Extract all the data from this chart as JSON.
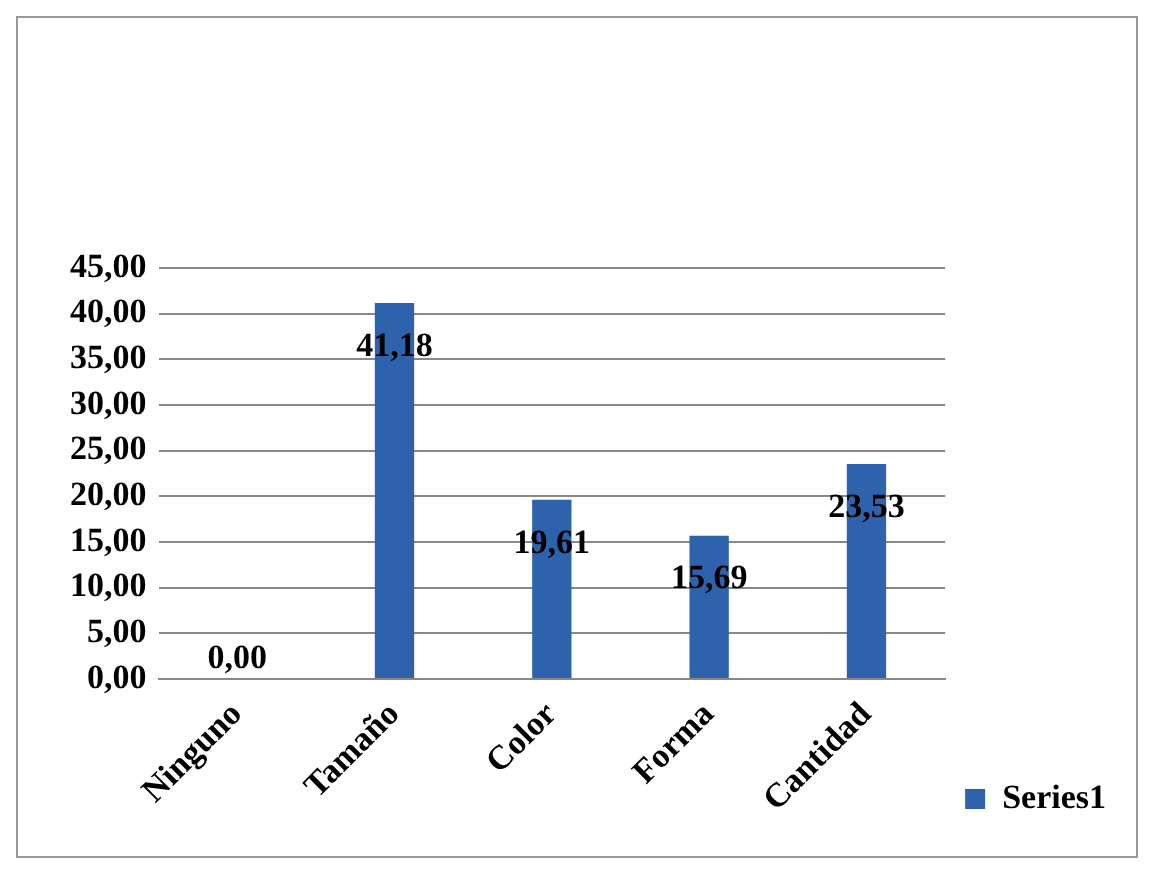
{
  "chart_data": {
    "type": "bar",
    "categories": [
      "Ninguno",
      "Tamaño",
      "Color",
      "Forma",
      "Cantidad"
    ],
    "series": [
      {
        "name": "Series1",
        "color": "#2e62ac",
        "values": [
          0,
          41.18,
          19.61,
          15.69,
          23.53
        ],
        "value_labels": [
          "0,00",
          "41,18",
          "19,61",
          "15,69",
          "23,53"
        ]
      }
    ],
    "ylim": [
      0,
      45
    ],
    "yticks": [
      {
        "value": 0,
        "label": "0,00"
      },
      {
        "value": 5,
        "label": "5,00"
      },
      {
        "value": 10,
        "label": "10,00"
      },
      {
        "value": 15,
        "label": "15,00"
      },
      {
        "value": 20,
        "label": "20,00"
      },
      {
        "value": 25,
        "label": "25,00"
      },
      {
        "value": 30,
        "label": "30,00"
      },
      {
        "value": 35,
        "label": "35,00"
      },
      {
        "value": 40,
        "label": "40,00"
      },
      {
        "value": 45,
        "label": "45,00"
      }
    ],
    "grid": "y",
    "legend": "right"
  }
}
